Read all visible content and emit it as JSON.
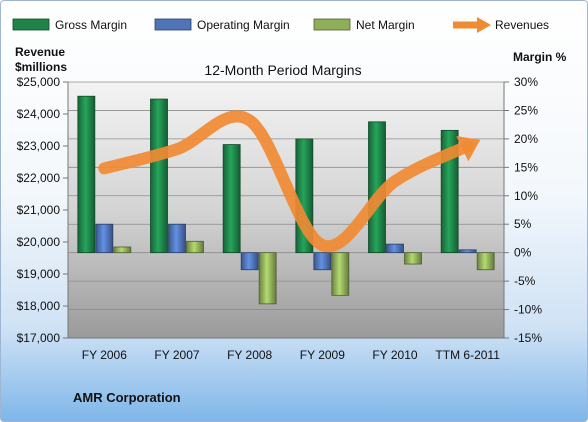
{
  "chart_data": {
    "type": "bar",
    "title": "12-Month Period Margins",
    "categories": [
      "FY 2006",
      "FY 2007",
      "FY 2008",
      "FY 2009",
      "FY 2010",
      "TTM 6-2011"
    ],
    "series": [
      {
        "name": "Gross Margin",
        "axis": "right",
        "color": "#1e8449",
        "values": [
          27.5,
          27.0,
          19.0,
          20.0,
          23.0,
          21.5
        ]
      },
      {
        "name": "Operating Margin",
        "axis": "right",
        "color": "#4f74b8",
        "values": [
          5.0,
          5.0,
          -3.0,
          -3.0,
          1.5,
          0.5
        ]
      },
      {
        "name": "Net Margin",
        "axis": "right",
        "color": "#8fae59",
        "values": [
          1.0,
          2.0,
          -9.0,
          -7.5,
          -2.0,
          -3.0
        ]
      }
    ],
    "line_series": {
      "name": "Revenues",
      "axis": "left",
      "color": "#f08a33",
      "values": [
        22300,
        22900,
        23800,
        19900,
        21900,
        23000
      ]
    },
    "ylabel_left": "Revenue\n$millions",
    "ylabel_right": "Margin %",
    "ylim_left": [
      17000,
      25000
    ],
    "yticks_left": [
      "$25,000",
      "$24,000",
      "$23,000",
      "$22,000",
      "$21,000",
      "$20,000",
      "$19,000",
      "$18,000",
      "$17,000"
    ],
    "ylim_right": [
      -15,
      30
    ],
    "yticks_right": [
      "30%",
      "25%",
      "20%",
      "15%",
      "10%",
      "5%",
      "0%",
      "-5%",
      "-10%",
      "-15%"
    ],
    "legend_position": "top",
    "footer": "AMR Corporation"
  }
}
